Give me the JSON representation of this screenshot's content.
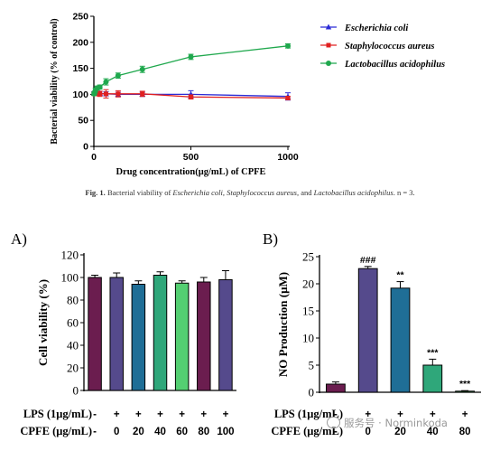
{
  "chart_data": [
    {
      "type": "line",
      "xlabel": "Drug concentration(μg/mL) of CPFE",
      "ylabel": "Bacterial viability (% of control)",
      "xlim": [
        0,
        1000
      ],
      "ylim": [
        0,
        250
      ],
      "x_ticks": [
        0,
        500,
        1000
      ],
      "y_ticks": [
        0,
        50,
        100,
        150,
        200,
        250
      ],
      "legend_position": "top-right",
      "x": [
        1,
        4,
        8,
        16,
        31,
        62.5,
        125,
        250,
        500,
        1000
      ],
      "series": [
        {
          "name": "Escherichia coli",
          "color": "#2b2bd6",
          "marker": "triangle",
          "values": [
            102,
            103,
            103,
            102,
            102,
            101,
            100,
            100,
            100,
            96
          ],
          "errors": [
            3,
            3,
            3,
            3,
            4,
            4,
            4,
            4,
            7,
            7
          ]
        },
        {
          "name": "Staphylococcus aureus",
          "color": "#e02020",
          "marker": "square",
          "values": [
            101,
            102,
            101,
            101,
            101,
            101,
            101,
            101,
            95,
            93
          ],
          "errors": [
            3,
            3,
            3,
            3,
            5,
            8,
            6,
            5,
            4,
            3
          ]
        },
        {
          "name": "Lactobacillus acidophilus",
          "color": "#1fa84d",
          "marker": "circle",
          "values": [
            101,
            103,
            108,
            112,
            114,
            124,
            136,
            148,
            172,
            193
          ],
          "errors": [
            3,
            3,
            4,
            4,
            4,
            6,
            5,
            6,
            5,
            4
          ]
        }
      ]
    },
    {
      "type": "bar",
      "panel_label": "A)",
      "ylabel": "Cell viability (%)",
      "ylim": [
        0,
        120
      ],
      "y_ticks": [
        0,
        20,
        40,
        60,
        80,
        100,
        120
      ],
      "row_labels": [
        "LPS (1μg/mL)",
        "CPFE (μg/mL)"
      ],
      "lps": [
        "-",
        "+",
        "+",
        "+",
        "+",
        "+",
        "+"
      ],
      "cpfe": [
        "-",
        "0",
        "20",
        "40",
        "60",
        "80",
        "100"
      ],
      "values": [
        100,
        100,
        94,
        102,
        95,
        96,
        98
      ],
      "errors": [
        2,
        4,
        3,
        3,
        2,
        4,
        8
      ],
      "colors": [
        "#6b1d4f",
        "#554a8c",
        "#1f6e96",
        "#2fa77a",
        "#54cf72",
        "#6b1d4f",
        "#554a8c"
      ]
    },
    {
      "type": "bar",
      "panel_label": "B)",
      "ylabel": "NO Production (μM)",
      "ylim": [
        0,
        25
      ],
      "y_ticks": [
        0,
        5,
        10,
        15,
        20,
        25
      ],
      "row_labels": [
        "LPS (1μg/mL)",
        "CPFE (μg/mL)"
      ],
      "lps": [
        "-",
        "+",
        "+",
        "+",
        "+"
      ],
      "cpfe": [
        "-",
        "0",
        "20",
        "40",
        "80"
      ],
      "values": [
        1.5,
        22.8,
        19.2,
        5.0,
        0.2
      ],
      "errors": [
        0.4,
        0.4,
        1.2,
        1.1,
        0.1
      ],
      "annotations": [
        "",
        "###",
        "**",
        "***",
        "***"
      ],
      "colors": [
        "#6b1d4f",
        "#554a8c",
        "#1f6e96",
        "#2fa77a",
        "#54cf72"
      ]
    }
  ],
  "caption": {
    "fig": "Fig. 1.",
    "text_prefix": "Bacterial viability of",
    "sp1": "Escherichia coli",
    "sep1": ",",
    "sp2": "Staphylococcus aureus",
    "sep2": ", and",
    "sp3": "Lactobacillus acidophilus",
    "suffix": ". n = 3."
  },
  "watermark": "服务号 · Norminkoda"
}
